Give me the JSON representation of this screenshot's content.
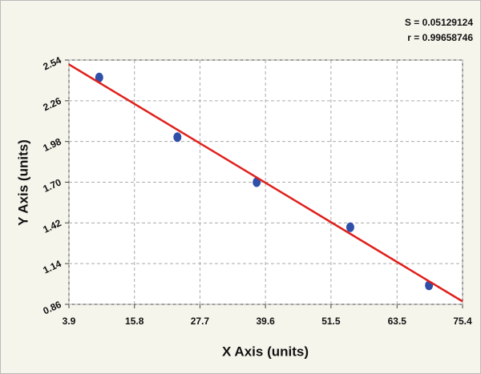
{
  "chart_data": {
    "type": "scatter",
    "annotations": [
      "S = 0.05129124",
      "r = 0.99658746"
    ],
    "x_label": "X Axis (units)",
    "y_label": "Y Axis (units)",
    "xlim": [
      3.9,
      75.4
    ],
    "xticks": [
      3.9,
      15.8,
      27.7,
      39.6,
      51.5,
      63.5,
      75.4
    ],
    "ylim": [
      0.86,
      2.54
    ],
    "yticks": [
      0.86,
      1.14,
      1.42,
      {
        "value": 1.7,
        "label": "1.70"
      },
      1.98,
      2.26,
      2.54
    ],
    "grid": true,
    "series": [
      {
        "type": "scatter",
        "color": "#2f4fa8",
        "x": [
          9.4,
          23.6,
          38.0,
          55.0,
          69.3
        ],
        "values": [
          2.42,
          2.01,
          1.7,
          1.39,
          0.99
        ]
      },
      {
        "type": "line",
        "color": "#e0201c",
        "x": [
          3.9,
          75.4
        ],
        "values": [
          2.51,
          0.88
        ]
      }
    ]
  }
}
